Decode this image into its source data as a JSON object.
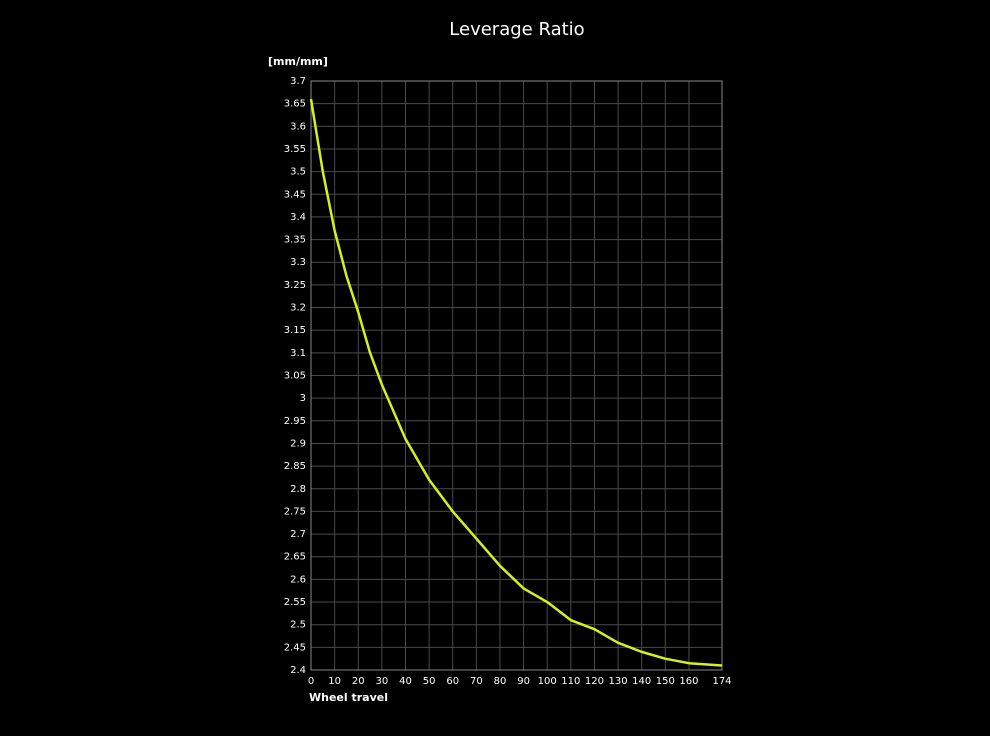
{
  "chart_data": {
    "type": "line",
    "title": "Leverage Ratio",
    "y_label": "[mm/mm]",
    "x_label": "Wheel travel",
    "x": [
      0,
      5,
      10,
      15,
      20,
      25,
      30,
      40,
      50,
      60,
      70,
      80,
      90,
      100,
      110,
      120,
      130,
      140,
      150,
      160,
      174
    ],
    "series": [
      {
        "color": "#d4f01e",
        "values": [
          3.66,
          3.5,
          3.37,
          3.27,
          3.19,
          3.1,
          3.03,
          2.91,
          2.82,
          2.75,
          2.69,
          2.63,
          2.58,
          2.55,
          2.51,
          2.49,
          2.46,
          2.44,
          2.425,
          2.415,
          2.41
        ]
      }
    ],
    "xlim": [
      0,
      174
    ],
    "xticks": [
      0,
      10,
      20,
      30,
      40,
      50,
      60,
      70,
      80,
      90,
      100,
      110,
      120,
      130,
      140,
      150,
      160,
      174
    ],
    "ylim": [
      2.4,
      3.7
    ],
    "yticks": [
      2.4,
      2.45,
      2.5,
      2.55,
      2.6,
      2.65,
      2.7,
      2.75,
      2.8,
      2.85,
      2.9,
      2.95,
      3,
      3.05,
      3.1,
      3.15,
      3.2,
      3.25,
      3.3,
      3.35,
      3.4,
      3.45,
      3.5,
      3.55,
      3.6,
      3.65,
      3.7
    ],
    "grid": true
  }
}
